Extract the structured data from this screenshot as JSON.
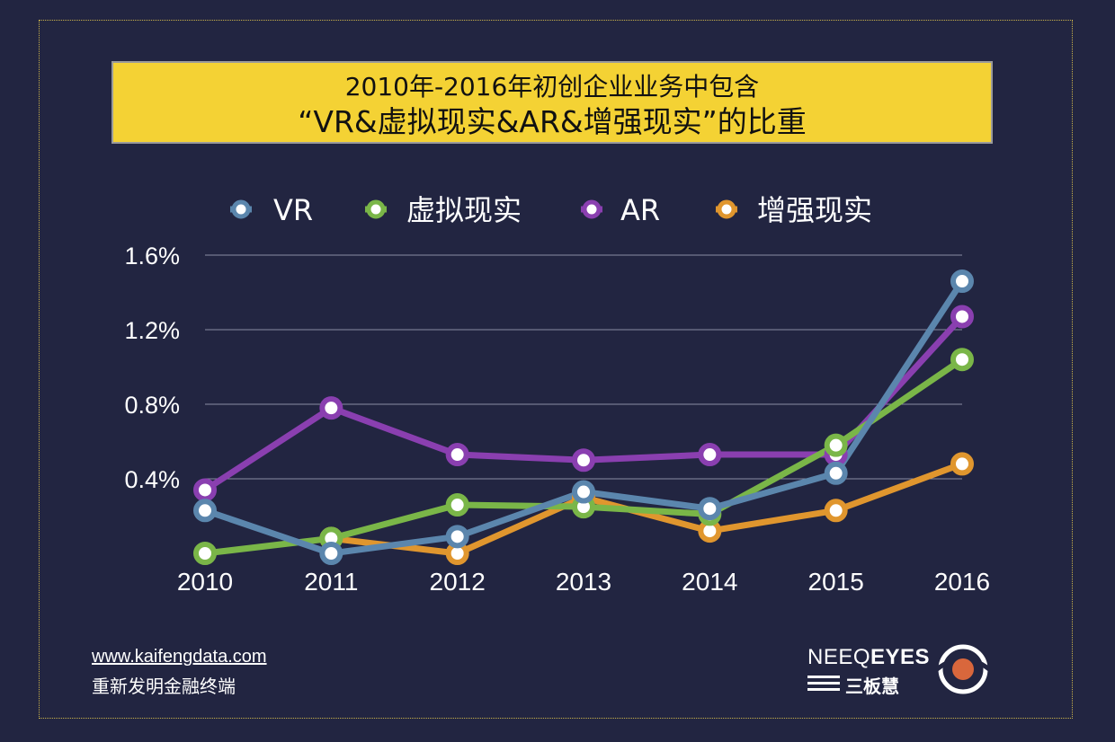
{
  "title": {
    "line1": "2010年-2016年初创企业业务中包含",
    "line2": "“VR&虚拟现实&AR&增强现实”的比重"
  },
  "footer": {
    "url": "www.kaifengdata.com",
    "slogan": "重新发明金融终端"
  },
  "logo": {
    "text_a": "NEEQ",
    "text_b": "EYES",
    "sub": "三板慧"
  },
  "colors": {
    "background": "#222541",
    "title_box": "#f4d234",
    "vr": "#5b86ad",
    "virtual_reality": "#7ab648",
    "ar": "#8a3fb0",
    "augmented_reality": "#e0962e"
  },
  "chart_data": {
    "type": "line",
    "categories": [
      "2010",
      "2011",
      "2012",
      "2013",
      "2014",
      "2015",
      "2016"
    ],
    "y_ticks": [
      "1.6%",
      "1.2%",
      "0.8%",
      "0.4%"
    ],
    "ylim": [
      0,
      1.6
    ],
    "grid": true,
    "legend_placement": "top",
    "series": [
      {
        "name": "VR",
        "color": "#5b86ad",
        "values": [
          0.23,
          0.0,
          0.09,
          0.33,
          0.24,
          0.43,
          1.46
        ]
      },
      {
        "name": "虚拟现实",
        "color": "#7ab648",
        "values": [
          0.0,
          0.08,
          0.26,
          0.25,
          0.21,
          0.58,
          1.04
        ]
      },
      {
        "name": "AR",
        "color": "#8a3fb0",
        "values": [
          0.34,
          0.78,
          0.53,
          0.5,
          0.53,
          0.53,
          1.27
        ]
      },
      {
        "name": "增强现实",
        "color": "#e0962e",
        "values": [
          null,
          0.08,
          0.0,
          0.3,
          0.12,
          0.23,
          0.48
        ]
      }
    ]
  }
}
